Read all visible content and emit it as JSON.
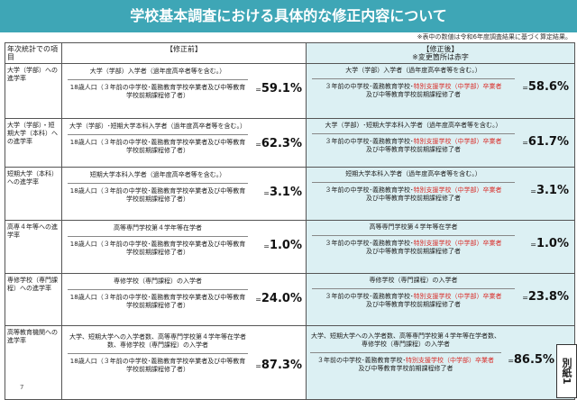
{
  "title": "学校基本調査における具体的な修正内容について",
  "note": "※表中の数値は令和6年度調査結果に基づく算定結果。",
  "header": {
    "col_item": "年次統計での項目",
    "col_before": "【修正前】",
    "col_after": "【修正後】",
    "col_after_note": "※変更箇所は赤字"
  },
  "denominator_before": "18歳人口（３年前の中学校･義務教育学校卒業者及び中等教育学校前期課程修了者）",
  "denominator_after": {
    "part1": "３年前の中学校･義務教育学校･",
    "part_red": "特別支援学校（中学部）卒業者",
    "part2": "及び中等教育学校前期課程修了者"
  },
  "colors": {
    "title_bg": "#3ea6b6",
    "after_bg": "#dcf0f3",
    "changed_text": "#d9302c"
  },
  "rows": [
    {
      "label": "大学（学部）への進学率",
      "num_before": "大学（学部）入学者（過年度高卒者等を含む。）",
      "value_before": "59.1%",
      "num_after": "大学（学部）入学者（過年度高卒者等を含む。）",
      "value_after": "58.6%"
    },
    {
      "label": "大学（学部）・短期大学（本科）への進学率",
      "num_before": "大学（学部）･短期大学本科入学者（過年度高卒者等を含む。）",
      "value_before": "62.3%",
      "num_after": "大学（学部）･短期大学本科入学者（過年度高卒者等を含む。）",
      "value_after": "61.7%"
    },
    {
      "label": "短期大学（本科）への進学率",
      "num_before": "短期大学本科入学者（過年度高卒者等を含む。）",
      "value_before": "3.1%",
      "num_after": "短期大学本科入学者（過年度高卒者等を含む。）",
      "value_after": "3.1%"
    },
    {
      "label": "高専４年等への進学率",
      "num_before": "高等専門学校第４学年等在学者",
      "value_before": "1.0%",
      "num_after": "高等専門学校第４学年等在学者",
      "value_after": "1.0%"
    },
    {
      "label": "専修学校（専門課程）への進学率",
      "num_before": "専修学校（専門課程）の入学者",
      "value_before": "24.0%",
      "num_after": "専修学校（専門課程）の入学者",
      "value_after": "23.8%"
    },
    {
      "label": "高等教育機関への進学率",
      "num_before": "大学、短期大学への入学者数、高等専門学校第４学年等在学者数、専修学校（専門課程）の入学者",
      "value_before": "87.3%",
      "num_after": "大学、短期大学への入学者数、高等専門学校第４学年等在学者数、専修学校（専門課程）の入学者",
      "value_after": "86.5%"
    }
  ],
  "equals": "=",
  "attachment_label": "別紙1",
  "page_number": "7"
}
